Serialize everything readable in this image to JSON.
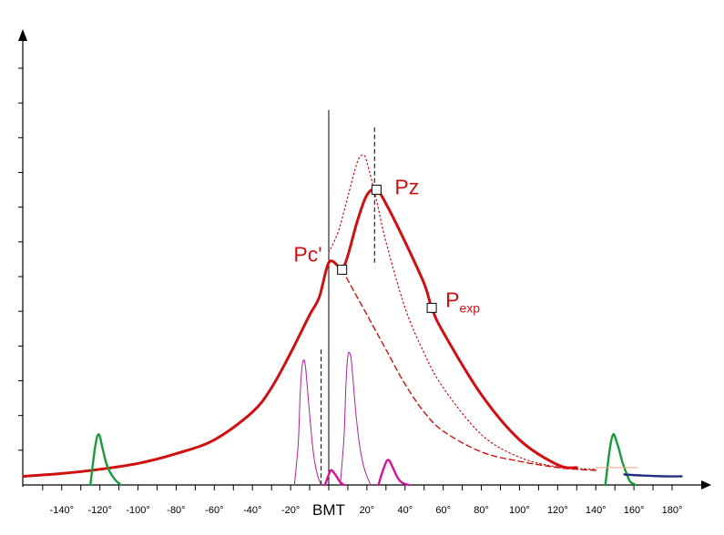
{
  "chart_data": {
    "type": "line",
    "title": "",
    "xlabel": "",
    "ylabel": "",
    "xlim": [
      -160,
      190
    ],
    "ylim": [
      0,
      12
    ],
    "x_tick_labels": [
      "-140°",
      "-120°",
      "-100°",
      "-80°",
      "-60°",
      "-40°",
      "-20°",
      "20°",
      "40°",
      "60°",
      "80°",
      "100°",
      "120°",
      "140°",
      "160°",
      "180°"
    ],
    "x_tick_values": [
      -140,
      -120,
      -100,
      -80,
      -60,
      -40,
      -20,
      20,
      40,
      60,
      80,
      100,
      120,
      140,
      160,
      180
    ],
    "x_center_label": "BMT",
    "y_tick_count": 12,
    "grid": false,
    "annotations": [
      {
        "id": "pc",
        "text": "Pc'",
        "x": 7,
        "y": 6.2,
        "marker": true
      },
      {
        "id": "pz",
        "text": "Pz",
        "x": 25,
        "y": 8.5,
        "marker": true
      },
      {
        "id": "pexp",
        "text": "P",
        "sub": "exp",
        "x": 54,
        "y": 5.1,
        "marker": true
      }
    ],
    "vertical_lines": [
      {
        "x": 0,
        "y_top": 10.8,
        "style": "solid"
      },
      {
        "x": 24,
        "y_top": 10.3,
        "y_bottom": 6.4,
        "style": "dashed"
      },
      {
        "x": -4,
        "y_top": 3.9,
        "style": "dashed"
      }
    ],
    "series": [
      {
        "key": "pressure",
        "style": "solid-thick",
        "color": "#d01010",
        "x": [
          -160,
          -140,
          -120,
          -100,
          -80,
          -60,
          -40,
          -30,
          -20,
          -10,
          -5,
          0,
          5,
          7,
          10,
          15,
          20,
          25,
          30,
          40,
          50,
          54,
          60,
          80,
          100,
          120,
          130
        ],
        "y": [
          0.25,
          0.33,
          0.45,
          0.62,
          0.9,
          1.3,
          2.1,
          2.8,
          3.8,
          4.9,
          5.4,
          6.4,
          6.3,
          6.2,
          6.6,
          7.6,
          8.35,
          8.5,
          8.1,
          7.0,
          5.8,
          5.1,
          4.4,
          2.6,
          1.3,
          0.58,
          0.5
        ]
      },
      {
        "key": "motoring",
        "style": "dashed",
        "color": "#d01010",
        "x": [
          7,
          10,
          15,
          20,
          30,
          40,
          50,
          60,
          80,
          100,
          120,
          130,
          140
        ],
        "y": [
          6.2,
          5.9,
          5.4,
          4.9,
          3.9,
          2.9,
          2.1,
          1.55,
          0.95,
          0.68,
          0.5,
          0.45,
          0.42
        ]
      },
      {
        "key": "no-injection",
        "style": "dotted",
        "color": "#d01010",
        "x": [
          0,
          5,
          10,
          15,
          18,
          20,
          25,
          30,
          40,
          50,
          60,
          80,
          100,
          120,
          140
        ],
        "y": [
          6.7,
          7.3,
          8.3,
          9.3,
          9.5,
          9.3,
          8.2,
          7.0,
          5.1,
          3.8,
          2.8,
          1.45,
          0.8,
          0.52,
          0.45
        ]
      },
      {
        "key": "injection-1",
        "style": "thin",
        "color": "#b020a0",
        "x": [
          -18,
          -16,
          -15,
          -14,
          -13,
          -12,
          -10,
          -8,
          -6,
          -4
        ],
        "y": [
          0,
          1.2,
          2.6,
          3.4,
          3.6,
          3.3,
          2.0,
          0.9,
          0.3,
          0
        ]
      },
      {
        "key": "injection-2",
        "style": "thin",
        "color": "#b020a0",
        "x": [
          6,
          8,
          9,
          10,
          11,
          12,
          14,
          16,
          18,
          20,
          22
        ],
        "y": [
          0,
          1.4,
          2.9,
          3.7,
          3.8,
          3.5,
          2.2,
          1.2,
          0.6,
          0.25,
          0
        ]
      },
      {
        "key": "small-pulse-1",
        "style": "medium",
        "color": "#d8109a",
        "x": [
          -2,
          0,
          1,
          2,
          4,
          6,
          8
        ],
        "y": [
          0,
          0.3,
          0.42,
          0.4,
          0.25,
          0.08,
          0
        ]
      },
      {
        "key": "small-pulse-2",
        "style": "medium",
        "color": "#d8109a",
        "x": [
          26,
          28,
          30,
          31,
          32,
          34,
          36,
          38,
          40,
          42
        ],
        "y": [
          0,
          0.35,
          0.65,
          0.72,
          0.68,
          0.45,
          0.22,
          0.08,
          0.03,
          0
        ]
      },
      {
        "key": "valve-left",
        "style": "medium",
        "color": "#1a9a3a",
        "x": [
          -125,
          -123,
          -122,
          -121,
          -120,
          -119,
          -117,
          -115,
          -112,
          -109
        ],
        "y": [
          0,
          0.9,
          1.25,
          1.45,
          1.4,
          1.15,
          0.7,
          0.4,
          0.15,
          0
        ]
      },
      {
        "key": "valve-right",
        "style": "medium",
        "color": "#1a9a3a",
        "x": [
          145,
          147,
          148,
          149,
          150,
          152,
          154,
          156,
          158,
          161
        ],
        "y": [
          0,
          0.9,
          1.25,
          1.45,
          1.4,
          1.05,
          0.65,
          0.35,
          0.1,
          0
        ]
      },
      {
        "key": "exhaust-tail",
        "style": "medium",
        "color": "#203080",
        "x": [
          155,
          165,
          175,
          185
        ],
        "y": [
          0.3,
          0.27,
          0.25,
          0.25
        ]
      },
      {
        "key": "exhaust-ref",
        "style": "thin",
        "color": "#f0a080",
        "x": [
          140,
          162
        ],
        "y": [
          0.5,
          0.5
        ]
      }
    ]
  }
}
